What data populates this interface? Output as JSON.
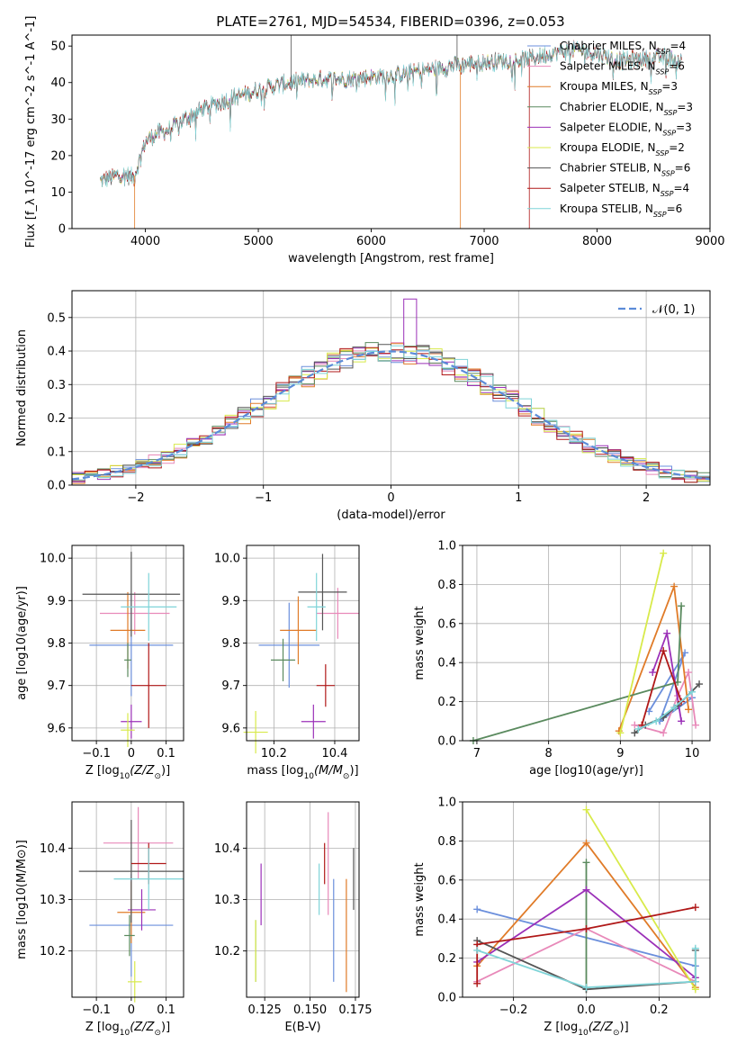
{
  "title": "PLATE=2761, MJD=54534, FIBERID=0396, z=0.053",
  "colors": {
    "chabrier_miles": "#6b8fdc",
    "salpeter_miles": "#e889b9",
    "kroupa_miles": "#e07b28",
    "chabrier_elodie": "#5a8a5e",
    "salpeter_elodie": "#9b30b8",
    "kroupa_elodie": "#d8ea4a",
    "chabrier_stelib": "#555555",
    "salpeter_stelib": "#b01818",
    "kroupa_stelib": "#7fd4d8",
    "normal_dashed": "#5b8bd8",
    "grid": "#b0b0b0"
  },
  "chart_data": [
    {
      "id": "spectrum",
      "type": "line",
      "xlabel": "wavelength [Angstrom, rest frame]",
      "ylabel": "Flux [f_λ 10^-17 erg cm^-2 s^-1 A^-1]",
      "xlim": [
        3350,
        9000
      ],
      "ylim": [
        0,
        53
      ],
      "xticks": [
        4000,
        5000,
        6000,
        7000,
        8000,
        9000
      ],
      "yticks": [
        0,
        10,
        20,
        30,
        40,
        50
      ],
      "grid": false,
      "legend_position": "upper right",
      "series": [
        {
          "key": "chabrier_miles",
          "name_pre": "Chabrier MILES, N",
          "name_sub": "SSP",
          "name_post": "=4"
        },
        {
          "key": "salpeter_miles",
          "name_pre": "Salpeter MILES, N",
          "name_sub": "SSP",
          "name_post": "=6"
        },
        {
          "key": "kroupa_miles",
          "name_pre": "Kroupa MILES, N",
          "name_sub": "SSP",
          "name_post": "=3"
        },
        {
          "key": "chabrier_elodie",
          "name_pre": "Chabrier ELODIE, N",
          "name_sub": "SSP",
          "name_post": "=3"
        },
        {
          "key": "salpeter_elodie",
          "name_pre": "Salpeter ELODIE, N",
          "name_sub": "SSP",
          "name_post": "=3"
        },
        {
          "key": "kroupa_elodie",
          "name_pre": "Kroupa ELODIE, N",
          "name_sub": "SSP",
          "name_post": "=2"
        },
        {
          "key": "chabrier_stelib",
          "name_pre": "Chabrier STELIB, N",
          "name_sub": "SSP",
          "name_post": "=6"
        },
        {
          "key": "salpeter_stelib",
          "name_pre": "Salpeter STELIB, N",
          "name_sub": "SSP",
          "name_post": "=4"
        },
        {
          "key": "kroupa_stelib",
          "name_pre": "Kroupa STELIB, N",
          "name_sub": "SSP",
          "name_post": "=6"
        }
      ],
      "continuum": {
        "x": [
          3600,
          3700,
          3800,
          3900,
          4000,
          4100,
          4200,
          4400,
          4600,
          4800,
          5000,
          5200,
          5400,
          5600,
          5800,
          6000,
          6200,
          6400,
          6600,
          6800,
          7000,
          7200,
          7400,
          7600,
          7800,
          8000,
          8200,
          8400,
          8600,
          8750
        ],
        "y": [
          13,
          14,
          15,
          14,
          24,
          26,
          27,
          31,
          34,
          36,
          38,
          39.5,
          40.5,
          41,
          41,
          41.5,
          42,
          43,
          44,
          45,
          45.5,
          46,
          46.5,
          48,
          49,
          48,
          46,
          46.5,
          47,
          46
        ]
      },
      "spikes": [
        {
          "x": 3905,
          "y": 0,
          "series": "kroupa_miles"
        },
        {
          "x": 5290,
          "y": 53,
          "series": "chabrier_stelib"
        },
        {
          "x": 6790,
          "y": 0,
          "series": "kroupa_miles"
        },
        {
          "x": 6760,
          "y": 54,
          "series": "chabrier_stelib"
        },
        {
          "x": 7400,
          "y": 0,
          "series": "salpeter_stelib"
        }
      ]
    },
    {
      "id": "residual_hist",
      "type": "bar",
      "xlabel": "(data-model)/error",
      "ylabel": "Normed distribution",
      "xlim": [
        -2.5,
        2.5
      ],
      "ylim": [
        0,
        0.58
      ],
      "xticks": [
        -2,
        -1,
        0,
        1,
        2
      ],
      "yticks": [
        0.0,
        0.1,
        0.2,
        0.3,
        0.4,
        0.5
      ],
      "grid": true,
      "bin_width": 0.1,
      "legend_position": "upper right",
      "legend_label": "𝒩(0, 1)",
      "series_keys": [
        "chabrier_miles",
        "salpeter_miles",
        "kroupa_miles",
        "chabrier_elodie",
        "salpeter_elodie",
        "kroupa_elodie",
        "chabrier_stelib",
        "salpeter_stelib",
        "kroupa_stelib"
      ]
    },
    {
      "id": "age_vs_Z",
      "type": "scatter",
      "xlabel_pre": "Z [log",
      "xlabel_sub": "10",
      "xlabel_post": "(Z/Z",
      "xlabel_sun": "⊙",
      "xlabel_end": ")]",
      "ylabel": "age  [log10(age/yr)]",
      "xlim": [
        -0.17,
        0.15
      ],
      "ylim": [
        9.57,
        10.03
      ],
      "xticks": [
        -0.1,
        0.0,
        0.1
      ],
      "yticks": [
        9.6,
        9.7,
        9.8,
        9.9,
        10.0
      ],
      "grid": true,
      "points": [
        {
          "series": "chabrier_miles",
          "x": 0.0,
          "xerr": 0.12,
          "y": 9.795,
          "yerr": 0.12
        },
        {
          "series": "salpeter_miles",
          "x": 0.01,
          "xerr": 0.1,
          "y": 9.87,
          "yerr": 0.05
        },
        {
          "series": "kroupa_miles",
          "x": -0.01,
          "xerr": 0.05,
          "y": 9.83,
          "yerr": 0.09
        },
        {
          "series": "chabrier_elodie",
          "x": -0.01,
          "xerr": 0.01,
          "y": 9.76,
          "yerr": 0.04
        },
        {
          "series": "salpeter_elodie",
          "x": 0.0,
          "xerr": 0.03,
          "y": 9.615,
          "yerr": 0.04
        },
        {
          "series": "kroupa_elodie",
          "x": -0.01,
          "xerr": 0.02,
          "y": 9.595,
          "yerr": 0.04
        },
        {
          "series": "chabrier_stelib",
          "x": 0.0,
          "xerr": 0.14,
          "y": 9.915,
          "yerr": 0.1
        },
        {
          "series": "salpeter_stelib",
          "x": 0.05,
          "xerr": 0.05,
          "y": 9.7,
          "yerr": 0.1
        },
        {
          "series": "kroupa_stelib",
          "x": 0.05,
          "xerr": 0.08,
          "y": 9.885,
          "yerr": 0.08
        }
      ]
    },
    {
      "id": "age_vs_mass",
      "type": "scatter",
      "xlabel_pre": "mass [log",
      "xlabel_sub": "10",
      "xlabel_post": "(M/M",
      "xlabel_sun": "⊙",
      "xlabel_end": ")]",
      "ylabel": "",
      "xlim": [
        10.11,
        10.48
      ],
      "ylim": [
        9.57,
        10.03
      ],
      "xticks": [
        10.2,
        10.4
      ],
      "yticks": [
        9.6,
        9.7,
        9.8,
        9.9,
        10.0
      ],
      "grid": true,
      "points": [
        {
          "series": "chabrier_miles",
          "x": 10.25,
          "xerr": 0.1,
          "y": 9.795,
          "yerr": 0.1
        },
        {
          "series": "salpeter_miles",
          "x": 10.41,
          "xerr": 0.07,
          "y": 9.87,
          "yerr": 0.06
        },
        {
          "series": "kroupa_miles",
          "x": 10.28,
          "xerr": 0.06,
          "y": 9.83,
          "yerr": 0.08
        },
        {
          "series": "chabrier_elodie",
          "x": 10.23,
          "xerr": 0.04,
          "y": 9.76,
          "yerr": 0.05
        },
        {
          "series": "salpeter_elodie",
          "x": 10.33,
          "xerr": 0.04,
          "y": 9.615,
          "yerr": 0.04
        },
        {
          "series": "kroupa_elodie",
          "x": 10.14,
          "xerr": 0.04,
          "y": 9.59,
          "yerr": 0.05
        },
        {
          "series": "chabrier_stelib",
          "x": 10.36,
          "xerr": 0.08,
          "y": 9.92,
          "yerr": 0.09
        },
        {
          "series": "salpeter_stelib",
          "x": 10.37,
          "xerr": 0.03,
          "y": 9.7,
          "yerr": 0.05
        },
        {
          "series": "kroupa_stelib",
          "x": 10.34,
          "xerr": 0.03,
          "y": 9.885,
          "yerr": 0.08
        }
      ]
    },
    {
      "id": "massweight_vs_age",
      "type": "line",
      "xlabel": "age  [log10(age/yr)]",
      "ylabel": "mass weight",
      "xlim": [
        6.8,
        10.25
      ],
      "ylim": [
        0,
        1.0
      ],
      "xticks": [
        7,
        8,
        9,
        10
      ],
      "yticks": [
        0.0,
        0.2,
        0.4,
        0.6,
        0.8,
        1.0
      ],
      "grid": true,
      "series": [
        {
          "series": "chabrier_miles",
          "x": [
            9.4,
            9.9,
            9.55,
            10.0
          ],
          "y": [
            0.15,
            0.45,
            0.1,
            0.22
          ]
        },
        {
          "series": "salpeter_miles",
          "x": [
            9.2,
            9.6,
            9.8,
            9.95,
            10.05
          ],
          "y": [
            0.08,
            0.04,
            0.23,
            0.35,
            0.08
          ]
        },
        {
          "series": "kroupa_miles",
          "x": [
            8.98,
            9.75,
            9.95
          ],
          "y": [
            0.05,
            0.79,
            0.16
          ]
        },
        {
          "series": "chabrier_elodie",
          "x": [
            6.95,
            9.8,
            9.85
          ],
          "y": [
            0.0,
            0.3,
            0.69
          ]
        },
        {
          "series": "salpeter_elodie",
          "x": [
            9.45,
            9.65,
            9.85
          ],
          "y": [
            0.35,
            0.55,
            0.1
          ]
        },
        {
          "series": "kroupa_elodie",
          "x": [
            9.0,
            9.6
          ],
          "y": [
            0.04,
            0.96
          ]
        },
        {
          "series": "chabrier_stelib",
          "x": [
            9.2,
            9.35,
            9.6,
            9.8,
            10.1
          ],
          "y": [
            0.04,
            0.08,
            0.12,
            0.18,
            0.29
          ]
        },
        {
          "series": "salpeter_stelib",
          "x": [
            9.3,
            9.6,
            9.85
          ],
          "y": [
            0.08,
            0.46,
            0.2
          ]
        },
        {
          "series": "kroupa_stelib",
          "x": [
            9.25,
            9.5,
            9.75,
            10.0
          ],
          "y": [
            0.06,
            0.1,
            0.17,
            0.25
          ]
        }
      ]
    },
    {
      "id": "mass_vs_Z",
      "type": "scatter",
      "xlabel_pre": "Z [log",
      "xlabel_sub": "10",
      "xlabel_post": "(Z/Z",
      "xlabel_sun": "⊙",
      "xlabel_end": ")]",
      "ylabel": "mass [log10(M/M⊙)]",
      "xlim": [
        -0.17,
        0.15
      ],
      "ylim": [
        10.11,
        10.49
      ],
      "xticks": [
        -0.1,
        0.0,
        0.1
      ],
      "yticks": [
        10.2,
        10.3,
        10.4
      ],
      "grid": true,
      "points": [
        {
          "series": "chabrier_miles",
          "x": 0.0,
          "xerr": 0.12,
          "y": 10.25,
          "yerr": 0.1
        },
        {
          "series": "salpeter_miles",
          "x": 0.02,
          "xerr": 0.1,
          "y": 10.41,
          "yerr": 0.07
        },
        {
          "series": "kroupa_miles",
          "x": 0.0,
          "xerr": 0.04,
          "y": 10.275,
          "yerr": 0.06
        },
        {
          "series": "chabrier_elodie",
          "x": -0.005,
          "xerr": 0.015,
          "y": 10.23,
          "yerr": 0.04
        },
        {
          "series": "salpeter_elodie",
          "x": 0.03,
          "xerr": 0.04,
          "y": 10.28,
          "yerr": 0.04
        },
        {
          "series": "kroupa_elodie",
          "x": 0.01,
          "xerr": 0.02,
          "y": 10.14,
          "yerr": 0.04
        },
        {
          "series": "chabrier_stelib",
          "x": 0.0,
          "xerr": 0.15,
          "y": 10.355,
          "yerr": 0.1
        },
        {
          "series": "salpeter_stelib",
          "x": 0.05,
          "xerr": 0.05,
          "y": 10.37,
          "yerr": 0.04
        },
        {
          "series": "kroupa_stelib",
          "x": 0.05,
          "xerr": 0.1,
          "y": 10.34,
          "yerr": 0.06
        }
      ]
    },
    {
      "id": "ebv",
      "type": "scatter",
      "xlabel": "E(B-V)",
      "ylabel": "",
      "xlim": [
        0.115,
        0.177
      ],
      "ylim": [
        10.11,
        10.49
      ],
      "xticks": [
        0.125,
        0.15,
        0.175
      ],
      "yticks": [
        10.2,
        10.3,
        10.4
      ],
      "grid": true,
      "points": [
        {
          "series": "chabrier_miles",
          "x": 0.163,
          "y": 10.24,
          "yerr": 0.1
        },
        {
          "series": "salpeter_miles",
          "x": 0.16,
          "y": 10.37,
          "yerr": 0.1
        },
        {
          "series": "kroupa_miles",
          "x": 0.17,
          "y": 10.23,
          "yerr": 0.11
        },
        {
          "series": "chabrier_elodie",
          "x": 0.12,
          "y": 10.2,
          "yerr": 0.06
        },
        {
          "series": "salpeter_elodie",
          "x": 0.123,
          "y": 10.31,
          "yerr": 0.06
        },
        {
          "series": "kroupa_elodie",
          "x": 0.12,
          "y": 10.2,
          "yerr": 0.06
        },
        {
          "series": "chabrier_stelib",
          "x": 0.174,
          "y": 10.34,
          "yerr": 0.06
        },
        {
          "series": "salpeter_stelib",
          "x": 0.158,
          "y": 10.37,
          "yerr": 0.04
        },
        {
          "series": "kroupa_stelib",
          "x": 0.155,
          "y": 10.32,
          "yerr": 0.05
        }
      ]
    },
    {
      "id": "massweight_vs_Z",
      "type": "line",
      "xlabel_pre": "Z [log",
      "xlabel_sub": "10",
      "xlabel_post": "(Z/Z",
      "xlabel_sun": "⊙",
      "xlabel_end": ")]",
      "ylabel": "mass weight",
      "xlim": [
        -0.34,
        0.34
      ],
      "ylim": [
        0,
        1.0
      ],
      "xticks": [
        -0.2,
        0.0,
        0.2
      ],
      "yticks": [
        0.0,
        0.2,
        0.4,
        0.6,
        0.8,
        1.0
      ],
      "grid": true,
      "series": [
        {
          "series": "chabrier_miles",
          "x": [
            -0.3,
            0.3
          ],
          "y": [
            0.45,
            0.16
          ]
        },
        {
          "series": "salpeter_miles",
          "x": [
            -0.3,
            0.0,
            0.3
          ],
          "y": [
            0.08,
            0.35,
            0.08
          ]
        },
        {
          "series": "kroupa_miles",
          "x": [
            -0.3,
            0.0,
            0.3
          ],
          "y": [
            0.16,
            0.79,
            0.05
          ]
        },
        {
          "series": "chabrier_elodie",
          "x": [
            0.0,
            0.0
          ],
          "y": [
            0.04,
            0.69
          ]
        },
        {
          "series": "salpeter_elodie",
          "x": [
            -0.3,
            0.0,
            0.3
          ],
          "y": [
            0.18,
            0.55,
            0.1
          ]
        },
        {
          "series": "kroupa_elodie",
          "x": [
            0.0,
            0.3
          ],
          "y": [
            0.96,
            0.04
          ]
        },
        {
          "series": "chabrier_stelib",
          "x": [
            -0.3,
            0.0,
            0.3,
            0.3
          ],
          "y": [
            0.29,
            0.04,
            0.08,
            0.24
          ]
        },
        {
          "series": "salpeter_stelib",
          "x": [
            -0.3,
            -0.3,
            0.0,
            0.3
          ],
          "y": [
            0.07,
            0.27,
            0.35,
            0.46
          ]
        },
        {
          "series": "kroupa_stelib",
          "x": [
            -0.3,
            0.0,
            0.3,
            0.3
          ],
          "y": [
            0.24,
            0.05,
            0.08,
            0.25
          ]
        }
      ]
    }
  ]
}
